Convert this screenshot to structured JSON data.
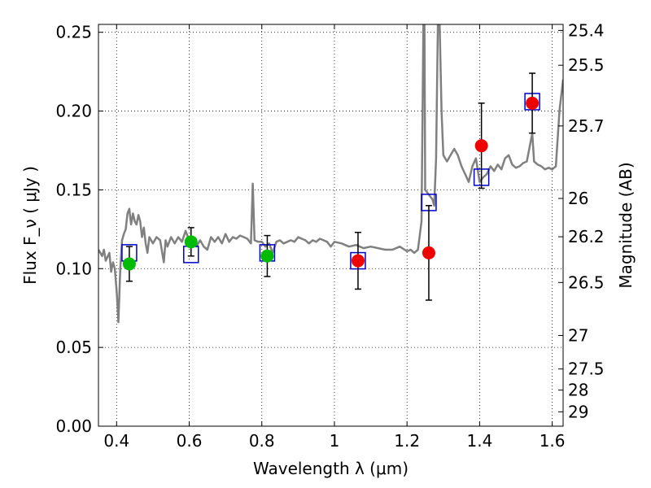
{
  "chart_data": {
    "type": "scatter",
    "title": "",
    "xlabel": "Wavelength  λ (μm)",
    "ylabel": "Flux  F_ν  ( μJy )",
    "y2label": "Magnitude (AB)",
    "xlim": [
      0.35,
      1.63
    ],
    "ylim": [
      0.0,
      0.255
    ],
    "grid": true,
    "x_ticks": [
      0.4,
      0.6,
      0.8,
      1.0,
      1.2,
      1.4,
      1.6
    ],
    "x_tick_labels": [
      "0.4",
      "0.6",
      "0.8",
      "1",
      "1.2",
      "1.4",
      "1.6"
    ],
    "y_ticks": [
      0.0,
      0.05,
      0.1,
      0.15,
      0.2,
      0.25
    ],
    "y_tick_labels": [
      "0.00",
      "0.05",
      "0.10",
      "0.15",
      "0.20",
      "0.25"
    ],
    "y2_ticks": [
      25.4,
      25.5,
      25.7,
      26,
      26.2,
      26.5,
      27,
      27.5,
      28,
      29
    ],
    "y2_tick_labels": [
      "25.4",
      "25.5",
      "25.7",
      "26",
      "26.2",
      "26.5",
      "27",
      "27.5",
      "28",
      "29"
    ],
    "colors": {
      "spectrum": "#808080",
      "model": "#0000cc",
      "green_points": "#00bb00",
      "red_points": "#ee0000",
      "errorbars": "#000000"
    },
    "series": [
      {
        "type": "line",
        "points": [
          [
            0.35,
            0.112
          ],
          [
            0.36,
            0.108
          ],
          [
            0.365,
            0.112
          ],
          [
            0.37,
            0.105
          ],
          [
            0.38,
            0.11
          ],
          [
            0.385,
            0.098
          ],
          [
            0.39,
            0.104
          ],
          [
            0.395,
            0.1
          ],
          [
            0.4,
            0.086
          ],
          [
            0.403,
            0.075
          ],
          [
            0.405,
            0.066
          ],
          [
            0.41,
            0.1
          ],
          [
            0.415,
            0.118
          ],
          [
            0.42,
            0.122
          ],
          [
            0.425,
            0.125
          ],
          [
            0.43,
            0.135
          ],
          [
            0.435,
            0.138
          ],
          [
            0.44,
            0.128
          ],
          [
            0.445,
            0.135
          ],
          [
            0.45,
            0.13
          ],
          [
            0.455,
            0.128
          ],
          [
            0.46,
            0.134
          ],
          [
            0.465,
            0.13
          ],
          [
            0.47,
            0.12
          ],
          [
            0.475,
            0.126
          ],
          [
            0.48,
            0.116
          ],
          [
            0.485,
            0.11
          ],
          [
            0.49,
            0.12
          ],
          [
            0.5,
            0.116
          ],
          [
            0.51,
            0.12
          ],
          [
            0.52,
            0.118
          ],
          [
            0.53,
            0.104
          ],
          [
            0.535,
            0.118
          ],
          [
            0.54,
            0.114
          ],
          [
            0.55,
            0.12
          ],
          [
            0.56,
            0.116
          ],
          [
            0.57,
            0.12
          ],
          [
            0.58,
            0.117
          ],
          [
            0.59,
            0.124
          ],
          [
            0.6,
            0.118
          ],
          [
            0.61,
            0.12
          ],
          [
            0.62,
            0.114
          ],
          [
            0.63,
            0.118
          ],
          [
            0.64,
            0.114
          ],
          [
            0.65,
            0.112
          ],
          [
            0.66,
            0.12
          ],
          [
            0.67,
            0.117
          ],
          [
            0.68,
            0.12
          ],
          [
            0.69,
            0.116
          ],
          [
            0.7,
            0.122
          ],
          [
            0.71,
            0.117
          ],
          [
            0.72,
            0.12
          ],
          [
            0.73,
            0.119
          ],
          [
            0.74,
            0.121
          ],
          [
            0.75,
            0.12
          ],
          [
            0.76,
            0.119
          ],
          [
            0.77,
            0.116
          ],
          [
            0.775,
            0.154
          ],
          [
            0.78,
            0.118
          ],
          [
            0.79,
            0.117
          ],
          [
            0.8,
            0.117
          ],
          [
            0.81,
            0.114
          ],
          [
            0.82,
            0.116
          ],
          [
            0.83,
            0.11
          ],
          [
            0.84,
            0.117
          ],
          [
            0.85,
            0.118
          ],
          [
            0.86,
            0.116
          ],
          [
            0.87,
            0.117
          ],
          [
            0.88,
            0.118
          ],
          [
            0.89,
            0.117
          ],
          [
            0.9,
            0.12
          ],
          [
            0.91,
            0.119
          ],
          [
            0.92,
            0.118
          ],
          [
            0.93,
            0.116
          ],
          [
            0.94,
            0.118
          ],
          [
            0.95,
            0.117
          ],
          [
            0.96,
            0.119
          ],
          [
            0.97,
            0.118
          ],
          [
            0.98,
            0.117
          ],
          [
            0.99,
            0.114
          ],
          [
            1.0,
            0.117
          ],
          [
            1.02,
            0.116
          ],
          [
            1.04,
            0.114
          ],
          [
            1.06,
            0.115
          ],
          [
            1.08,
            0.113
          ],
          [
            1.1,
            0.114
          ],
          [
            1.12,
            0.113
          ],
          [
            1.14,
            0.112
          ],
          [
            1.16,
            0.112
          ],
          [
            1.18,
            0.114
          ],
          [
            1.2,
            0.111
          ],
          [
            1.21,
            0.112
          ],
          [
            1.22,
            0.11
          ],
          [
            1.23,
            0.112
          ],
          [
            1.24,
            0.13
          ],
          [
            1.245,
            0.255
          ],
          [
            1.248,
            0.255
          ],
          [
            1.25,
            0.15
          ],
          [
            1.26,
            0.147
          ],
          [
            1.27,
            0.144
          ],
          [
            1.275,
            0.14
          ],
          [
            1.28,
            0.17
          ],
          [
            1.285,
            0.255
          ],
          [
            1.29,
            0.255
          ],
          [
            1.295,
            0.2
          ],
          [
            1.3,
            0.172
          ],
          [
            1.31,
            0.168
          ],
          [
            1.32,
            0.172
          ],
          [
            1.33,
            0.176
          ],
          [
            1.34,
            0.172
          ],
          [
            1.35,
            0.165
          ],
          [
            1.36,
            0.16
          ],
          [
            1.37,
            0.155
          ],
          [
            1.38,
            0.165
          ],
          [
            1.39,
            0.17
          ],
          [
            1.4,
            0.155
          ],
          [
            1.41,
            0.158
          ],
          [
            1.42,
            0.16
          ],
          [
            1.43,
            0.165
          ],
          [
            1.44,
            0.162
          ],
          [
            1.45,
            0.166
          ],
          [
            1.46,
            0.163
          ],
          [
            1.47,
            0.17
          ],
          [
            1.48,
            0.172
          ],
          [
            1.49,
            0.166
          ],
          [
            1.5,
            0.164
          ],
          [
            1.51,
            0.165
          ],
          [
            1.52,
            0.167
          ],
          [
            1.53,
            0.168
          ],
          [
            1.54,
            0.18
          ],
          [
            1.545,
            0.186
          ],
          [
            1.55,
            0.168
          ],
          [
            1.56,
            0.166
          ],
          [
            1.57,
            0.165
          ],
          [
            1.58,
            0.163
          ],
          [
            1.59,
            0.164
          ],
          [
            1.6,
            0.163
          ],
          [
            1.61,
            0.165
          ],
          [
            1.62,
            0.2
          ],
          [
            1.63,
            0.22
          ]
        ]
      },
      {
        "type": "model_squares",
        "points": [
          [
            0.435,
            0.11
          ],
          [
            0.605,
            0.109
          ],
          [
            0.815,
            0.11
          ],
          [
            1.065,
            0.105
          ],
          [
            1.26,
            0.142
          ],
          [
            1.405,
            0.158
          ],
          [
            1.545,
            0.206
          ]
        ]
      },
      {
        "type": "points",
        "color_key": "green_points",
        "points": [
          [
            0.435,
            0.103,
            0.011
          ],
          [
            0.605,
            0.117,
            0.009
          ],
          [
            0.815,
            0.108,
            0.013
          ]
        ]
      },
      {
        "type": "points",
        "color_key": "red_points",
        "points": [
          [
            1.065,
            0.105,
            0.018
          ],
          [
            1.26,
            0.11,
            0.03
          ],
          [
            1.405,
            0.178,
            0.027
          ],
          [
            1.545,
            0.205,
            0.019
          ]
        ]
      }
    ]
  }
}
